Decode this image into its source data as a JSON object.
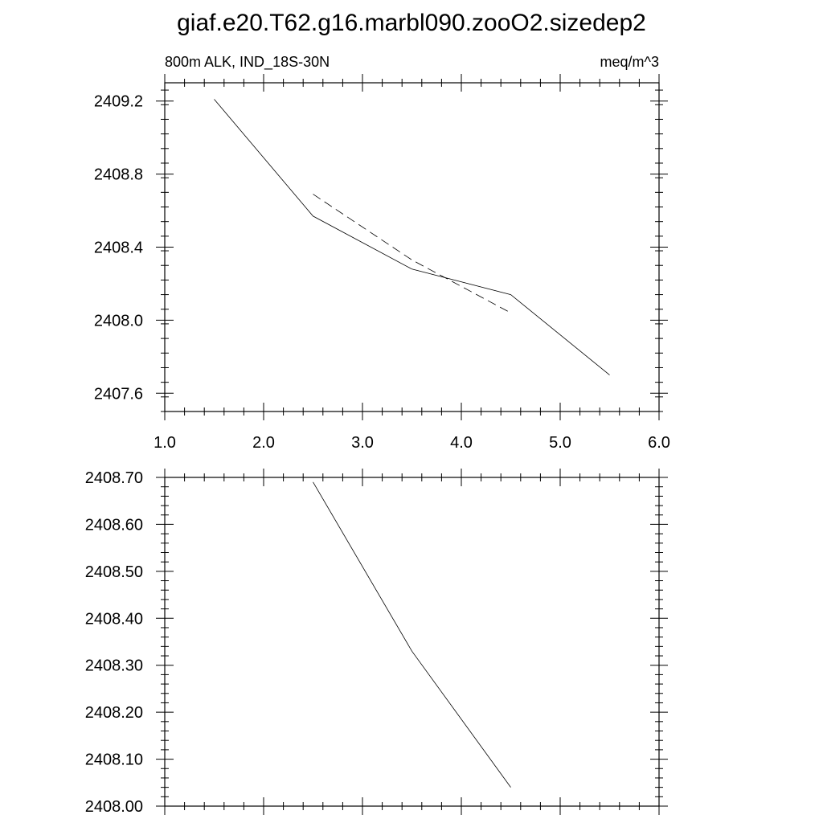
{
  "title": "giaf.e20.T62.g16.marbl090.zooO2.sizedep2",
  "chart_data": [
    {
      "type": "line",
      "left_string": "800m ALK, IND_18S-30N",
      "right_string": "meq/m^3",
      "xlim": [
        1.0,
        6.0
      ],
      "ylim": [
        2407.5,
        2409.3
      ],
      "x_ticks": [
        1.0,
        2.0,
        3.0,
        4.0,
        5.0,
        6.0
      ],
      "x_tick_labels": [
        "1.0",
        "2.0",
        "3.0",
        "4.0",
        "5.0",
        "6.0"
      ],
      "y_ticks": [
        2407.6,
        2408.0,
        2408.4,
        2408.8,
        2409.2
      ],
      "y_tick_labels": [
        "2407.6",
        "2408.0",
        "2408.4",
        "2408.8",
        "2409.2"
      ],
      "series": [
        {
          "style": "solid",
          "x": [
            1.5,
            2.5,
            3.5,
            4.5,
            5.5
          ],
          "y": [
            2409.21,
            2408.57,
            2408.28,
            2408.14,
            2407.7
          ]
        },
        {
          "style": "dashed",
          "x": [
            2.5,
            3.5,
            4.5
          ],
          "y": [
            2408.69,
            2408.33,
            2408.04
          ]
        }
      ]
    },
    {
      "type": "line",
      "xlim": [
        1.0,
        6.0
      ],
      "ylim": [
        2408.0,
        2408.7
      ],
      "x_ticks": [
        1.0,
        2.0,
        3.0,
        4.0,
        5.0,
        6.0
      ],
      "y_ticks": [
        2408.0,
        2408.1,
        2408.2,
        2408.3,
        2408.4,
        2408.5,
        2408.6,
        2408.7
      ],
      "y_tick_labels": [
        "2408.00",
        "2408.10",
        "2408.20",
        "2408.30",
        "2408.40",
        "2408.50",
        "2408.60",
        "2408.70"
      ],
      "series": [
        {
          "style": "solid",
          "x": [
            2.5,
            3.5,
            4.5
          ],
          "y": [
            2408.69,
            2408.33,
            2408.04
          ]
        }
      ]
    }
  ]
}
